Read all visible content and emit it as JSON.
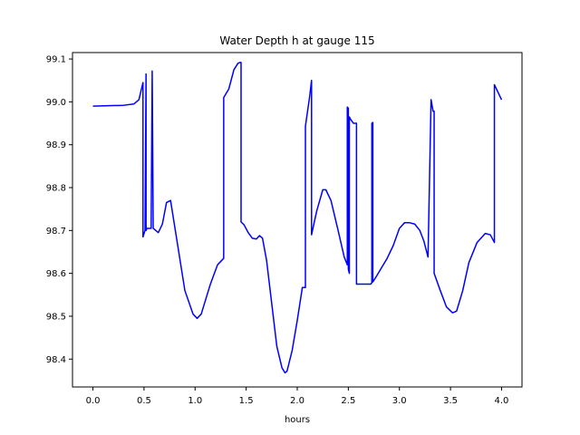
{
  "chart_data": {
    "type": "line",
    "title": "Water Depth h at gauge 115",
    "xlabel": "hours",
    "ylabel": "",
    "xlim": [
      -0.2,
      4.2
    ],
    "ylim": [
      98.335,
      99.115
    ],
    "xticks": [
      0.0,
      0.5,
      1.0,
      1.5,
      2.0,
      2.5,
      3.0,
      3.5,
      4.0
    ],
    "xtick_labels": [
      "0.0",
      "0.5",
      "1.0",
      "1.5",
      "2.0",
      "2.5",
      "3.0",
      "3.5",
      "4.0"
    ],
    "yticks": [
      98.4,
      98.5,
      98.6,
      98.7,
      98.8,
      98.9,
      99.0,
      99.1
    ],
    "ytick_labels": [
      "98.4",
      "98.5",
      "98.6",
      "98.7",
      "98.8",
      "98.9",
      "99.0",
      "99.1"
    ],
    "grid": false,
    "series": [
      {
        "color": "#0000ff",
        "x": [
          0.0,
          0.3,
          0.4,
          0.45,
          0.49,
          0.49,
          0.51,
          0.52,
          0.52,
          0.53,
          0.53,
          0.57,
          0.58,
          0.58,
          0.59,
          0.59,
          0.64,
          0.68,
          0.72,
          0.76,
          0.8,
          0.9,
          0.98,
          1.02,
          1.06,
          1.15,
          1.22,
          1.28,
          1.28,
          1.33,
          1.38,
          1.42,
          1.44,
          1.45,
          1.45,
          1.48,
          1.52,
          1.56,
          1.6,
          1.63,
          1.66,
          1.7,
          1.75,
          1.8,
          1.85,
          1.88,
          1.9,
          1.95,
          2.0,
          2.05,
          2.08,
          2.08,
          2.12,
          2.14,
          2.14,
          2.14,
          2.19,
          2.25,
          2.28,
          2.33,
          2.4,
          2.46,
          2.49,
          2.49,
          2.5,
          2.5,
          2.51,
          2.51,
          2.52,
          2.52,
          2.55,
          2.58,
          2.58,
          2.6,
          2.7,
          2.72,
          2.73,
          2.73,
          2.74,
          2.74,
          2.78,
          2.83,
          2.88,
          2.94,
          3.0,
          3.05,
          3.1,
          3.15,
          3.2,
          3.24,
          3.28,
          3.31,
          3.31,
          3.33,
          3.34,
          3.34,
          3.4,
          3.46,
          3.52,
          3.56,
          3.62,
          3.68,
          3.76,
          3.84,
          3.89,
          3.93,
          3.93,
          3.93,
          3.97,
          4.0
        ],
        "y": [
          98.99,
          98.992,
          98.995,
          99.005,
          99.045,
          98.685,
          98.7,
          99.065,
          98.7,
          98.705,
          98.705,
          98.705,
          99.072,
          99.072,
          98.705,
          98.705,
          98.695,
          98.715,
          98.765,
          98.77,
          98.71,
          98.56,
          98.505,
          98.495,
          98.505,
          98.575,
          98.62,
          98.635,
          99.01,
          99.03,
          99.075,
          99.09,
          99.092,
          99.092,
          98.72,
          98.713,
          98.695,
          98.682,
          98.68,
          98.688,
          98.682,
          98.63,
          98.53,
          98.43,
          98.38,
          98.368,
          98.372,
          98.42,
          98.49,
          98.567,
          98.567,
          98.943,
          99.01,
          99.05,
          98.945,
          98.69,
          98.745,
          98.795,
          98.795,
          98.77,
          98.7,
          98.638,
          98.62,
          98.988,
          98.985,
          98.61,
          98.6,
          98.965,
          98.96,
          98.96,
          98.95,
          98.95,
          98.575,
          98.575,
          98.575,
          98.575,
          98.578,
          98.95,
          98.952,
          98.58,
          98.595,
          98.615,
          98.635,
          98.665,
          98.705,
          98.718,
          98.718,
          98.715,
          98.7,
          98.675,
          98.638,
          99.005,
          99.005,
          98.978,
          98.978,
          98.6,
          98.56,
          98.522,
          98.508,
          98.512,
          98.56,
          98.625,
          98.672,
          98.693,
          98.69,
          98.672,
          99.04,
          99.04,
          99.02,
          99.005
        ]
      }
    ]
  }
}
